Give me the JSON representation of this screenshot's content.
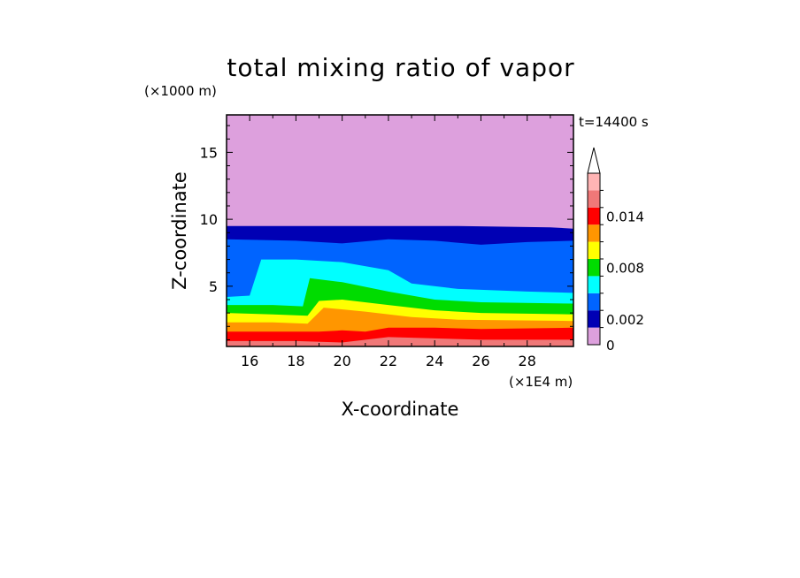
{
  "chart_data": {
    "type": "contour",
    "title": "total mixing ratio of vapor",
    "xlabel": "X-coordinate",
    "ylabel": "Z-coordinate",
    "x_unit": "(×1E4 m)",
    "y_unit": "(×1000 m)",
    "time_label": "t=14400 s",
    "xlim": [
      15,
      30
    ],
    "ylim": [
      0.5,
      17.8
    ],
    "x_ticks": [
      16,
      18,
      20,
      22,
      24,
      26,
      28
    ],
    "y_ticks": [
      5,
      10,
      15
    ],
    "colorbar": {
      "levels": [
        0,
        0.002,
        0.004,
        0.006,
        0.008,
        0.01,
        0.012,
        0.014,
        0.016
      ],
      "labels": [
        "0",
        "0.002",
        "0.008",
        "0.014"
      ],
      "colors": [
        "#dda0dd",
        "#0000b4",
        "#0064ff",
        "#00ffff",
        "#00dc00",
        "#ffff00",
        "#ff9600",
        "#ff0000",
        "#f07878",
        "#ffb4b4"
      ],
      "extend": "max"
    },
    "bands": [
      {
        "level": 0,
        "color": "#dda0dd",
        "top": [
          [
            15,
            17.8
          ],
          [
            30,
            17.8
          ]
        ]
      },
      {
        "level": 0.0005,
        "color": "#0000b4",
        "top": [
          [
            15,
            9.5
          ],
          [
            20,
            9.5
          ],
          [
            25,
            9.5
          ],
          [
            29,
            9.4
          ],
          [
            30,
            9.3
          ]
        ]
      },
      {
        "level": 0.002,
        "color": "#0064ff",
        "top": [
          [
            15,
            8.5
          ],
          [
            18,
            8.4
          ],
          [
            20,
            8.2
          ],
          [
            22,
            8.5
          ],
          [
            24,
            8.4
          ],
          [
            26,
            8.1
          ],
          [
            28,
            8.3
          ],
          [
            30,
            8.4
          ]
        ]
      },
      {
        "level": 0.004,
        "color": "#00ffff",
        "top": [
          [
            15,
            4.2
          ],
          [
            16,
            4.3
          ],
          [
            16.5,
            7.0
          ],
          [
            18,
            7.0
          ],
          [
            20,
            6.8
          ],
          [
            22,
            6.2
          ],
          [
            23,
            5.2
          ],
          [
            25,
            4.8
          ],
          [
            28,
            4.6
          ],
          [
            30,
            4.5
          ]
        ]
      },
      {
        "level": 0.006,
        "color": "#00dc00",
        "top": [
          [
            15,
            3.6
          ],
          [
            17,
            3.6
          ],
          [
            18.3,
            3.5
          ],
          [
            18.6,
            5.6
          ],
          [
            20,
            5.3
          ],
          [
            22,
            4.6
          ],
          [
            24,
            4.0
          ],
          [
            26,
            3.8
          ],
          [
            30,
            3.7
          ]
        ]
      },
      {
        "level": 0.008,
        "color": "#ffff00",
        "top": [
          [
            15,
            3.0
          ],
          [
            17,
            2.9
          ],
          [
            18.5,
            2.8
          ],
          [
            19,
            3.9
          ],
          [
            20,
            4.0
          ],
          [
            22,
            3.6
          ],
          [
            24,
            3.2
          ],
          [
            26,
            3.0
          ],
          [
            30,
            2.9
          ]
        ]
      },
      {
        "level": 0.01,
        "color": "#ff9600",
        "top": [
          [
            15,
            2.3
          ],
          [
            17,
            2.3
          ],
          [
            18.5,
            2.2
          ],
          [
            19.2,
            3.4
          ],
          [
            21,
            3.1
          ],
          [
            23,
            2.7
          ],
          [
            25,
            2.5
          ],
          [
            30,
            2.4
          ]
        ]
      },
      {
        "level": 0.012,
        "color": "#ff0000",
        "top": [
          [
            15,
            1.6
          ],
          [
            17,
            1.6
          ],
          [
            19,
            1.6
          ],
          [
            20,
            1.7
          ],
          [
            21,
            1.6
          ],
          [
            22,
            1.9
          ],
          [
            24,
            1.9
          ],
          [
            26,
            1.8
          ],
          [
            30,
            1.9
          ]
        ]
      },
      {
        "level": 0.014,
        "color": "#f07878",
        "top": [
          [
            15,
            0.9
          ],
          [
            18,
            0.9
          ],
          [
            20,
            0.8
          ],
          [
            22,
            1.2
          ],
          [
            24,
            1.1
          ],
          [
            26,
            1.0
          ],
          [
            30,
            1.0
          ]
        ]
      }
    ]
  }
}
